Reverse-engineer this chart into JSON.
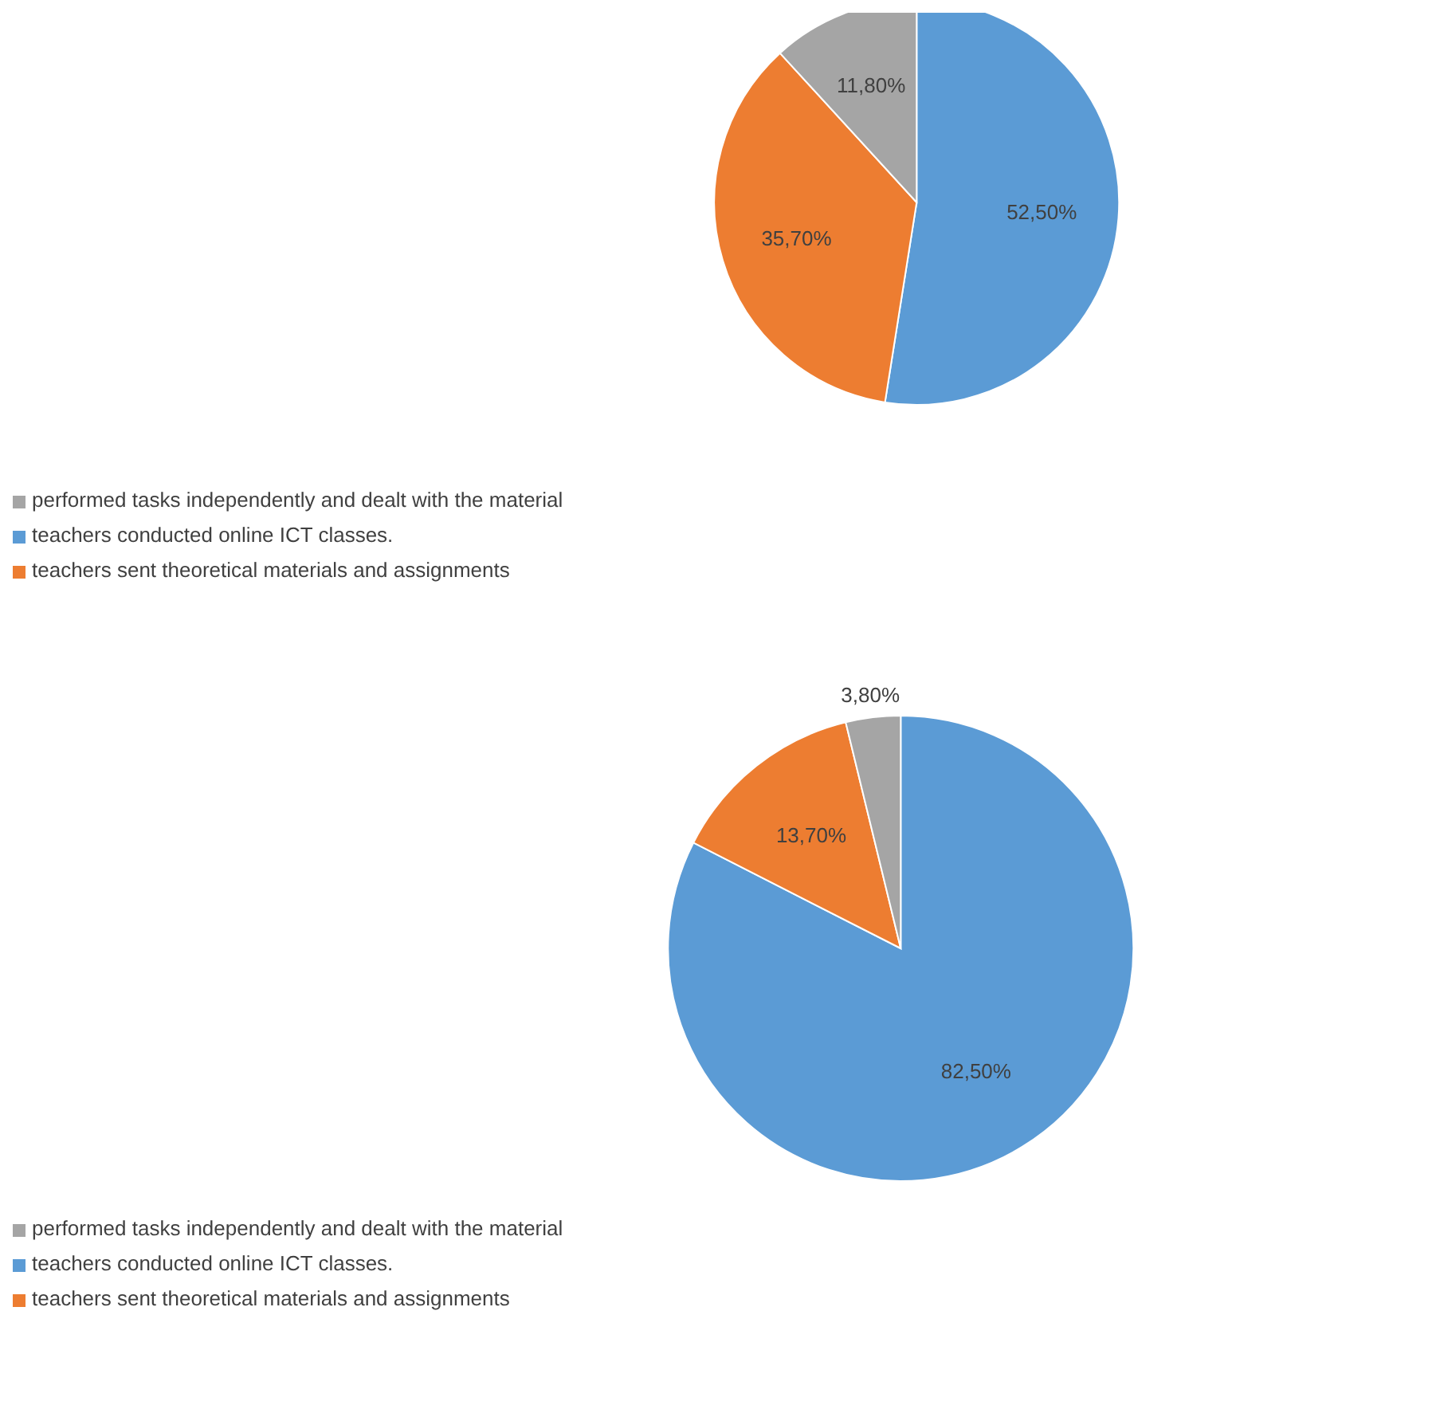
{
  "chart_data": [
    {
      "type": "pie",
      "categories": [
        "teachers conducted online ICT classes.",
        "teachers sent theoretical materials and assignments",
        "performed tasks independently and dealt with the material"
      ],
      "values": [
        52.5,
        35.7,
        11.8
      ],
      "colors": [
        "#5b9bd5",
        "#ed7d31",
        "#a5a5a5"
      ],
      "value_labels": [
        "52,50%",
        "35,70%",
        "11,80%"
      ],
      "legend": "bottom"
    },
    {
      "type": "pie",
      "categories": [
        "teachers conducted online ICT classes.",
        "teachers sent theoretical materials and assignments",
        "performed tasks independently and dealt with the material"
      ],
      "values": [
        82.5,
        13.7,
        3.8
      ],
      "colors": [
        "#5b9bd5",
        "#ed7d31",
        "#a5a5a5"
      ],
      "value_labels": [
        "82,50%",
        "13,70%",
        "3,80%"
      ],
      "legend": "bottom"
    }
  ]
}
